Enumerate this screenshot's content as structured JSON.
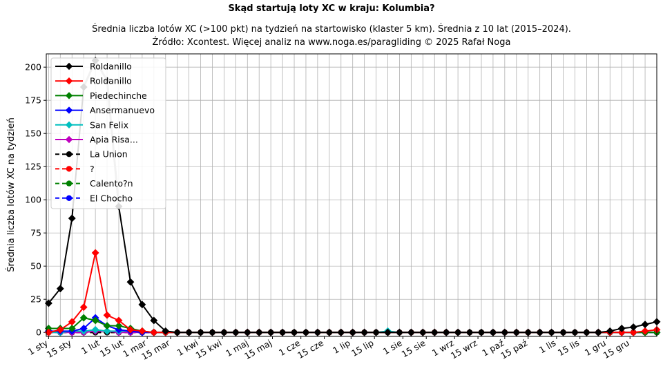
{
  "chart_data": {
    "type": "line",
    "title": "Skąd startują loty XC w kraju: Kolumbia?",
    "subtitle_lines": [
      "Średnia liczba lotów XC (>100 pkt) na tydzień na startowisko (klaster 5 km). Średnia z 10 lat (2015–2024).",
      "Źródło: Xcontest. Więcej analiz na www.noga.es/paragliding © 2025 Rafał Noga"
    ],
    "xlabel": "",
    "ylabel": "Średnia liczba lotów XC na tydzień",
    "ylim": [
      -3,
      210
    ],
    "xlim": [
      0.8,
      53.0
    ],
    "yticks": [
      0,
      25,
      50,
      75,
      100,
      125,
      150,
      175,
      200
    ],
    "grid": true,
    "legend_position": "top-left",
    "xticks": [
      {
        "label": "1 sty",
        "x": 1.0
      },
      {
        "label": "15 sty",
        "x": 3.0
      },
      {
        "label": "1 lut",
        "x": 5.43
      },
      {
        "label": "15 lut",
        "x": 7.43
      },
      {
        "label": "1 mar",
        "x": 9.43
      },
      {
        "label": "15 mar",
        "x": 11.43
      },
      {
        "label": "1 kwi",
        "x": 13.86
      },
      {
        "label": "15 kwi",
        "x": 15.86
      },
      {
        "label": "1 maj",
        "x": 18.14
      },
      {
        "label": "15 maj",
        "x": 20.14
      },
      {
        "label": "1 cze",
        "x": 22.57
      },
      {
        "label": "15 cze",
        "x": 24.57
      },
      {
        "label": "1 lip",
        "x": 26.86
      },
      {
        "label": "15 lip",
        "x": 28.86
      },
      {
        "label": "1 sie",
        "x": 31.29
      },
      {
        "label": "15 sie",
        "x": 33.29
      },
      {
        "label": "1 wrz",
        "x": 35.71
      },
      {
        "label": "15 wrz",
        "x": 37.71
      },
      {
        "label": "1 paź",
        "x": 40.0
      },
      {
        "label": "15 paź",
        "x": 42.0
      },
      {
        "label": "1 lis",
        "x": 44.43
      },
      {
        "label": "15 lis",
        "x": 46.43
      },
      {
        "label": "1 gru",
        "x": 48.71
      },
      {
        "label": "15 gru",
        "x": 50.71
      }
    ],
    "x": [
      1,
      2,
      3,
      4,
      5,
      6,
      7,
      8,
      9,
      10,
      11,
      12,
      13,
      14,
      15,
      16,
      17,
      18,
      19,
      20,
      21,
      22,
      23,
      24,
      25,
      26,
      27,
      28,
      29,
      30,
      31,
      32,
      33,
      34,
      35,
      36,
      37,
      38,
      39,
      40,
      41,
      42,
      43,
      44,
      45,
      46,
      47,
      48,
      49,
      50,
      51,
      52,
      53
    ],
    "series": [
      {
        "name": "Roldanillo",
        "color": "#000000",
        "dash": false,
        "marker": "diamond",
        "values": [
          22,
          33,
          86,
          185,
          205,
          190,
          95,
          38,
          21,
          9,
          1,
          0,
          0,
          0,
          0,
          0,
          0,
          0,
          0,
          0,
          0,
          0,
          0,
          0,
          0,
          0,
          0,
          0,
          0,
          0,
          0,
          0,
          0,
          0,
          0,
          0,
          0,
          0,
          0,
          0,
          0,
          0,
          0,
          0,
          0,
          0,
          0,
          0,
          1,
          3,
          4,
          6,
          8
        ]
      },
      {
        "name": "Roldanillo",
        "color": "#ff0000",
        "dash": false,
        "marker": "diamond",
        "values": [
          0,
          2,
          8,
          19,
          60,
          13,
          9,
          2,
          1,
          0,
          0,
          0,
          0,
          0,
          0,
          0,
          0,
          0,
          0,
          0,
          0,
          0,
          0,
          0,
          0,
          0,
          0,
          0,
          0,
          0,
          0,
          0,
          0,
          0,
          0,
          0,
          0,
          0,
          0,
          0,
          0,
          0,
          0,
          0,
          0,
          0,
          0,
          0,
          0,
          0,
          0,
          1,
          2
        ]
      },
      {
        "name": "Piedechinche",
        "color": "#008000",
        "dash": false,
        "marker": "diamond",
        "values": [
          3,
          3,
          3,
          11,
          9,
          5,
          5,
          3,
          1,
          0,
          0,
          0,
          0,
          0,
          0,
          0,
          0,
          0,
          0,
          0,
          0,
          0,
          0,
          0,
          0,
          0,
          0,
          0,
          0,
          0,
          0,
          0,
          0,
          0,
          0,
          0,
          0,
          0,
          0,
          0,
          0,
          0,
          0,
          0,
          0,
          0,
          0,
          0,
          0,
          0,
          0,
          0,
          0
        ]
      },
      {
        "name": "Ansermanuevo",
        "color": "#0000ff",
        "dash": false,
        "marker": "diamond",
        "values": [
          1,
          1,
          1,
          3,
          11,
          5,
          2,
          1,
          0,
          0,
          0,
          0,
          0,
          0,
          0,
          0,
          0,
          0,
          0,
          0,
          0,
          0,
          0,
          0,
          0,
          0,
          0,
          0,
          0,
          0,
          0,
          0,
          0,
          0,
          0,
          0,
          0,
          0,
          0,
          0,
          0,
          0,
          0,
          0,
          0,
          0,
          0,
          0,
          0,
          0,
          0,
          0,
          0
        ]
      },
      {
        "name": "San Felix",
        "color": "#00bfbf",
        "dash": false,
        "marker": "diamond",
        "values": [
          0,
          0,
          1,
          1,
          2,
          1,
          1,
          1,
          1,
          0,
          0,
          0,
          0,
          0,
          0,
          0,
          0,
          0,
          0,
          0,
          0,
          0,
          0,
          0,
          0,
          0,
          0,
          0,
          0,
          1,
          0,
          0,
          0,
          0,
          0,
          0,
          0,
          0,
          0,
          0,
          0,
          0,
          0,
          0,
          0,
          0,
          0,
          0,
          0,
          0,
          0,
          0,
          0
        ]
      },
      {
        "name": "Apia Risa...",
        "color": "#bf00bf",
        "dash": false,
        "marker": "diamond",
        "values": [
          0,
          0,
          0,
          0,
          1,
          1,
          0,
          0,
          0,
          0,
          0,
          0,
          0,
          0,
          0,
          0,
          0,
          0,
          0,
          0,
          0,
          0,
          0,
          0,
          0,
          0,
          0,
          0,
          0,
          0,
          0,
          0,
          0,
          0,
          0,
          0,
          0,
          0,
          0,
          0,
          0,
          0,
          0,
          0,
          0,
          0,
          0,
          0,
          0,
          0,
          0,
          0,
          0
        ]
      },
      {
        "name": "La Union",
        "color": "#000000",
        "dash": true,
        "marker": "circle",
        "values": [
          0,
          0,
          0,
          0,
          0,
          0,
          0,
          0,
          0,
          0,
          0,
          0,
          0,
          0,
          0,
          0,
          0,
          0,
          0,
          0,
          0,
          0,
          0,
          0,
          0,
          0,
          0,
          0,
          0,
          0,
          0,
          0,
          0,
          0,
          0,
          0,
          0,
          0,
          0,
          0,
          0,
          0,
          0,
          0,
          0,
          0,
          0,
          0,
          0,
          0,
          0,
          0,
          0
        ]
      },
      {
        "name": "?",
        "color": "#ff0000",
        "dash": true,
        "marker": "circle",
        "values": [
          0,
          0,
          0,
          0,
          0,
          0,
          0,
          0,
          0,
          0,
          0,
          0,
          0,
          0,
          0,
          0,
          0,
          0,
          0,
          0,
          0,
          0,
          0,
          0,
          0,
          0,
          0,
          0,
          0,
          0,
          0,
          0,
          0,
          0,
          0,
          0,
          0,
          0,
          0,
          0,
          0,
          0,
          0,
          0,
          0,
          0,
          0,
          0,
          0,
          0,
          0,
          0,
          0
        ]
      },
      {
        "name": "Calento?n",
        "color": "#008000",
        "dash": true,
        "marker": "circle",
        "values": [
          0,
          0,
          0,
          0,
          0,
          0,
          0,
          0,
          0,
          0,
          0,
          0,
          0,
          0,
          0,
          0,
          0,
          0,
          0,
          0,
          0,
          0,
          0,
          0,
          0,
          0,
          0,
          0,
          0,
          0,
          0,
          0,
          0,
          0,
          0,
          0,
          0,
          0,
          0,
          0,
          0,
          0,
          0,
          0,
          0,
          0,
          0,
          0,
          0,
          0,
          0,
          0,
          0
        ]
      },
      {
        "name": "El Chocho",
        "color": "#0000ff",
        "dash": true,
        "marker": "circle",
        "values": [
          0,
          0,
          0,
          0,
          0,
          0,
          0,
          0,
          0,
          0,
          0,
          0,
          0,
          0,
          0,
          0,
          0,
          0,
          0,
          0,
          0,
          0,
          0,
          0,
          0,
          0,
          0,
          0,
          0,
          0,
          0,
          0,
          0,
          0,
          0,
          0,
          0,
          0,
          0,
          0,
          0,
          0,
          0,
          0,
          0,
          0,
          0,
          0,
          0,
          0,
          0,
          0,
          0
        ]
      }
    ],
    "highlight": {
      "color": "#a0a0a0",
      "x": [
        4,
        5,
        6,
        7
      ],
      "values": [
        185,
        205,
        190,
        95
      ]
    }
  }
}
